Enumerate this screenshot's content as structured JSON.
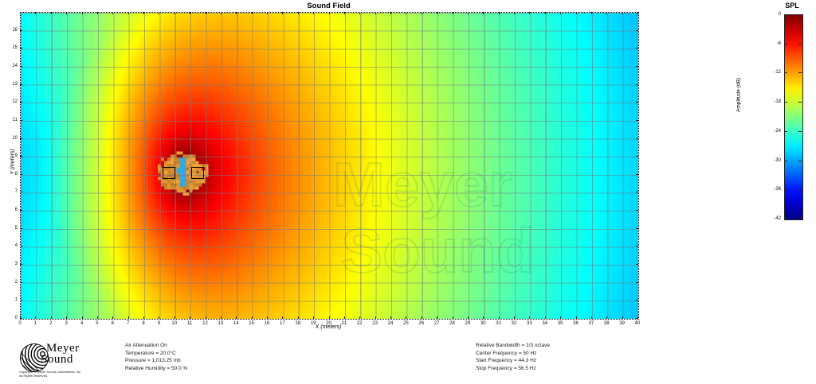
{
  "title": "Sound Field",
  "colorbar": {
    "title": "SPL",
    "axis_label": "Amplitude (dB)",
    "tick_labels": [
      "0",
      "-6",
      "-12",
      "-18",
      "-24",
      "-30",
      "-36",
      "-42"
    ]
  },
  "axes": {
    "x_label": "X (meters)",
    "y_label": "Y (meters)"
  },
  "watermark": {
    "line1": "Meyer",
    "line2": "Sound"
  },
  "branding": {
    "logo_line1": "Meyer",
    "logo_line2": "Sound",
    "copyright_line1": "Copyright © Meyer Sound Laboratories, Inc.",
    "copyright_line2": "All Rights Reserved"
  },
  "info_left": {
    "lines": [
      "Air Attenuation On",
      "Temperature = 20.0°C",
      "Pressure = 1,013.25  mb",
      "Relative Humidity = 50.0 %"
    ]
  },
  "info_right": {
    "lines": [
      "Relative Bandwidth =  1/3 octave",
      "Center Frequency = 50 Hz",
      "Start Frequency = 44.3 Hz",
      "Stop Frequency = 56.5 Hz"
    ]
  },
  "source_icons": {
    "left_symbol": "−",
    "right_symbol": "+"
  },
  "chart_data": {
    "type": "heatmap",
    "title": "Sound Field",
    "xlabel": "X (meters)",
    "ylabel": "Y (meters)",
    "x_range": [
      0,
      40
    ],
    "y_range": [
      0,
      17
    ],
    "x_tick_step": 1,
    "y_tick_step": 1,
    "y_tick_label_max": 16,
    "grid_spacing_m": 1,
    "amplitude_range_db": [
      -42,
      0
    ],
    "colormap": "jet",
    "colorbar_ticks_db": [
      0,
      -6,
      -12,
      -18,
      -24,
      -30,
      -36,
      -42
    ],
    "source": {
      "x_m": 10.5,
      "y_m": 8.1,
      "heading": "+x",
      "description": "two-element loudspeaker source radiating toward +x; SPL falls from 0 dB (dark red) at source to ~-42 dB (blue) at field edges, with rear attenuation behind the array (left edge blue)"
    },
    "field_model": {
      "linear_falloff_db_per_m": 0.55,
      "log_falloff_db_per_decade": 8,
      "rear_attenuation_db": 14,
      "rear_attenuation_exponent": 3,
      "rear_attenuation_full_distance_m": 9,
      "min_distance_m": 0.45
    },
    "overload_region": {
      "radius_x_m": 1.55,
      "radius_y_m": 1.08,
      "color": "#e09434"
    },
    "lens": {
      "radius_x_m": 0.3,
      "radius_y_m": 0.85,
      "color": "#38a8dc"
    }
  }
}
